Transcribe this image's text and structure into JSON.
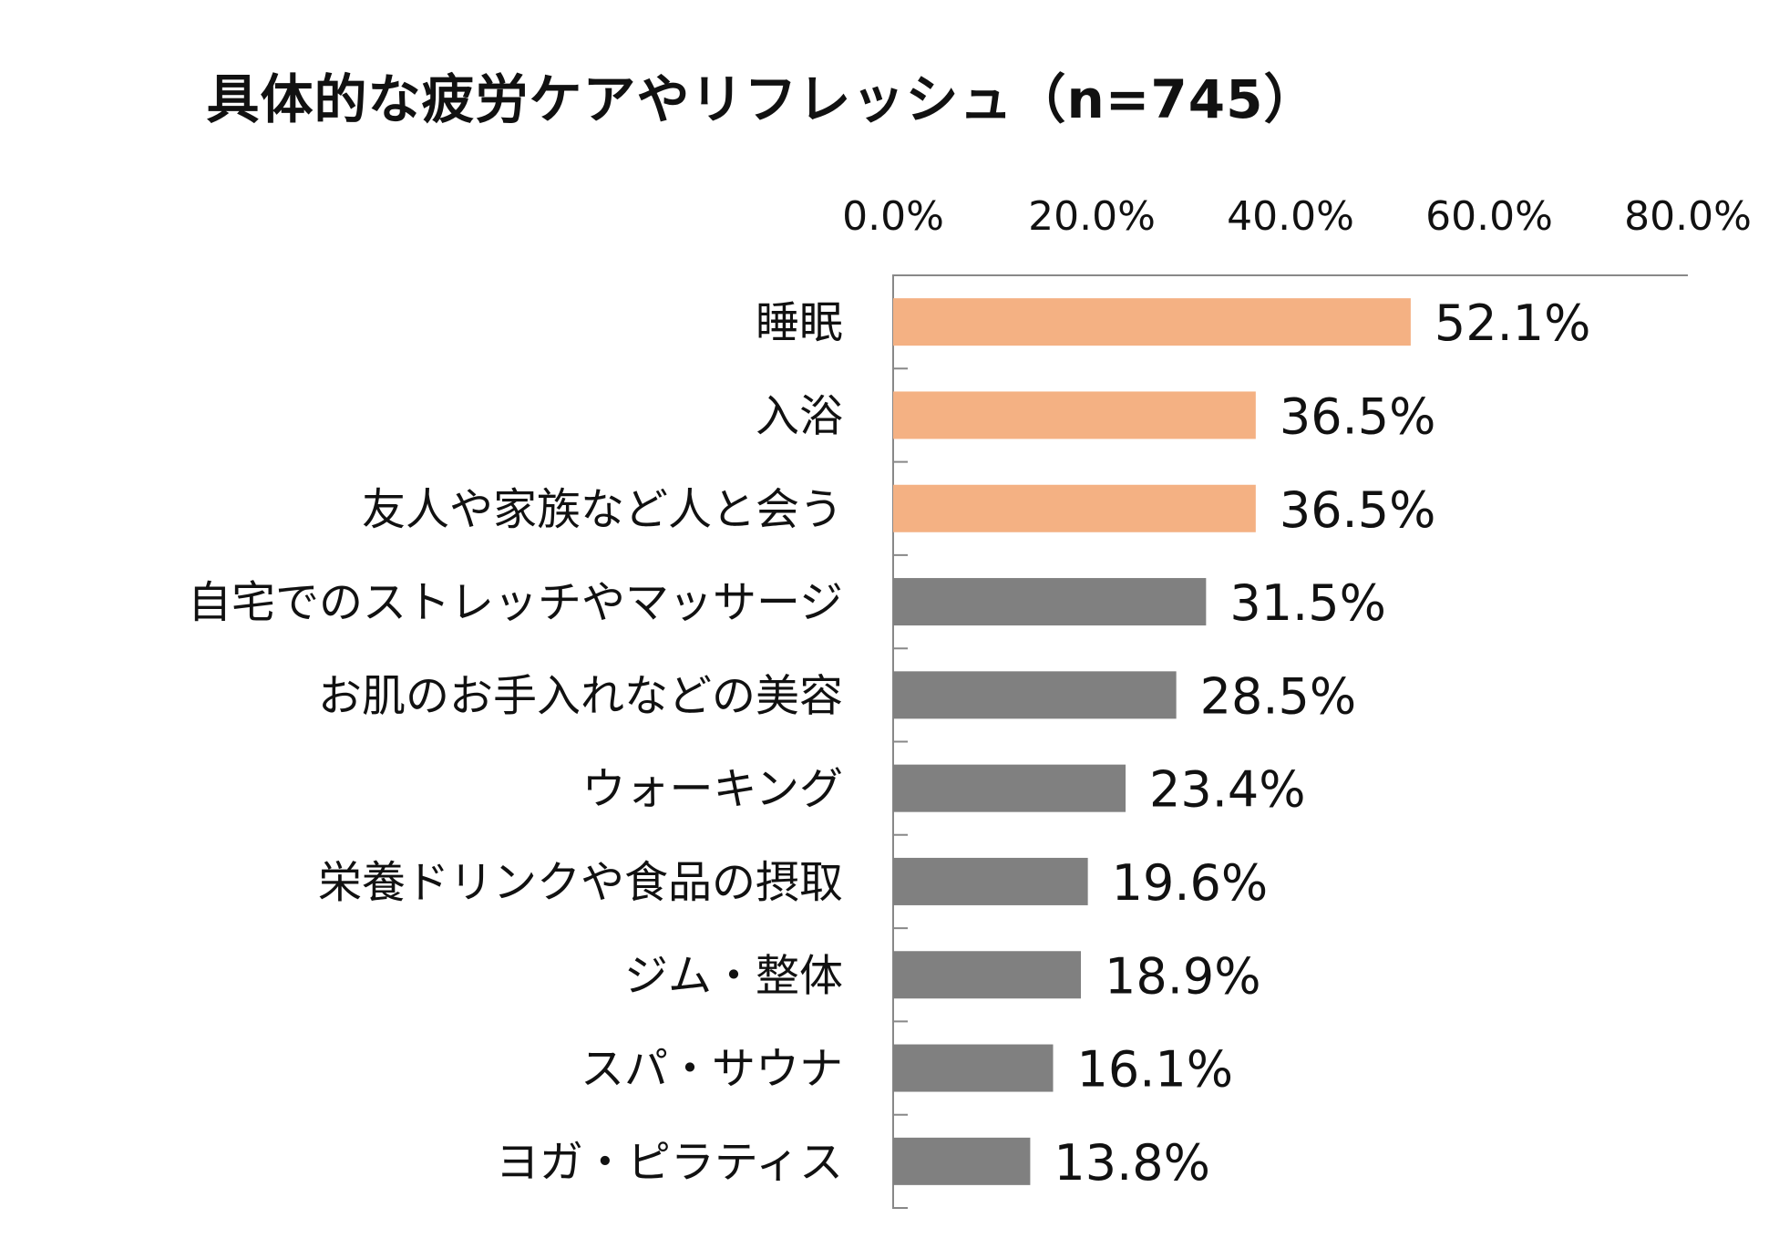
{
  "chart_data": {
    "type": "bar",
    "orientation": "horizontal",
    "title": "具体的な疲労ケアやリフレッシュ（n=745）",
    "xlabel": "",
    "ylabel": "",
    "xlim": [
      0,
      80
    ],
    "x_ticks": [
      0,
      20,
      40,
      60,
      80
    ],
    "x_tick_labels": [
      "0.0%",
      "20.0%",
      "40.0%",
      "60.0%",
      "80.0%"
    ],
    "x_axis_position": "top",
    "grid": false,
    "legend": "none",
    "categories": [
      "睡眠",
      "入浴",
      "友人や家族など人と会う",
      "自宅でのストレッチやマッサージ",
      "お肌のお手入れなどの美容",
      "ウォーキング",
      "栄養ドリンクや食品の摂取",
      "ジム・整体",
      "スパ・サウナ",
      "ヨガ・ピラティス"
    ],
    "values": [
      52.1,
      36.5,
      36.5,
      31.5,
      28.5,
      23.4,
      19.6,
      18.9,
      16.1,
      13.8
    ],
    "value_labels": [
      "52.1%",
      "36.5%",
      "36.5%",
      "31.5%",
      "28.5%",
      "23.4%",
      "19.6%",
      "18.9%",
      "16.1%",
      "13.8%"
    ],
    "highlight_count": 3,
    "colors": {
      "highlight": "#f4b183",
      "normal": "#808080",
      "axis": "#888888",
      "text": "#111111"
    }
  }
}
